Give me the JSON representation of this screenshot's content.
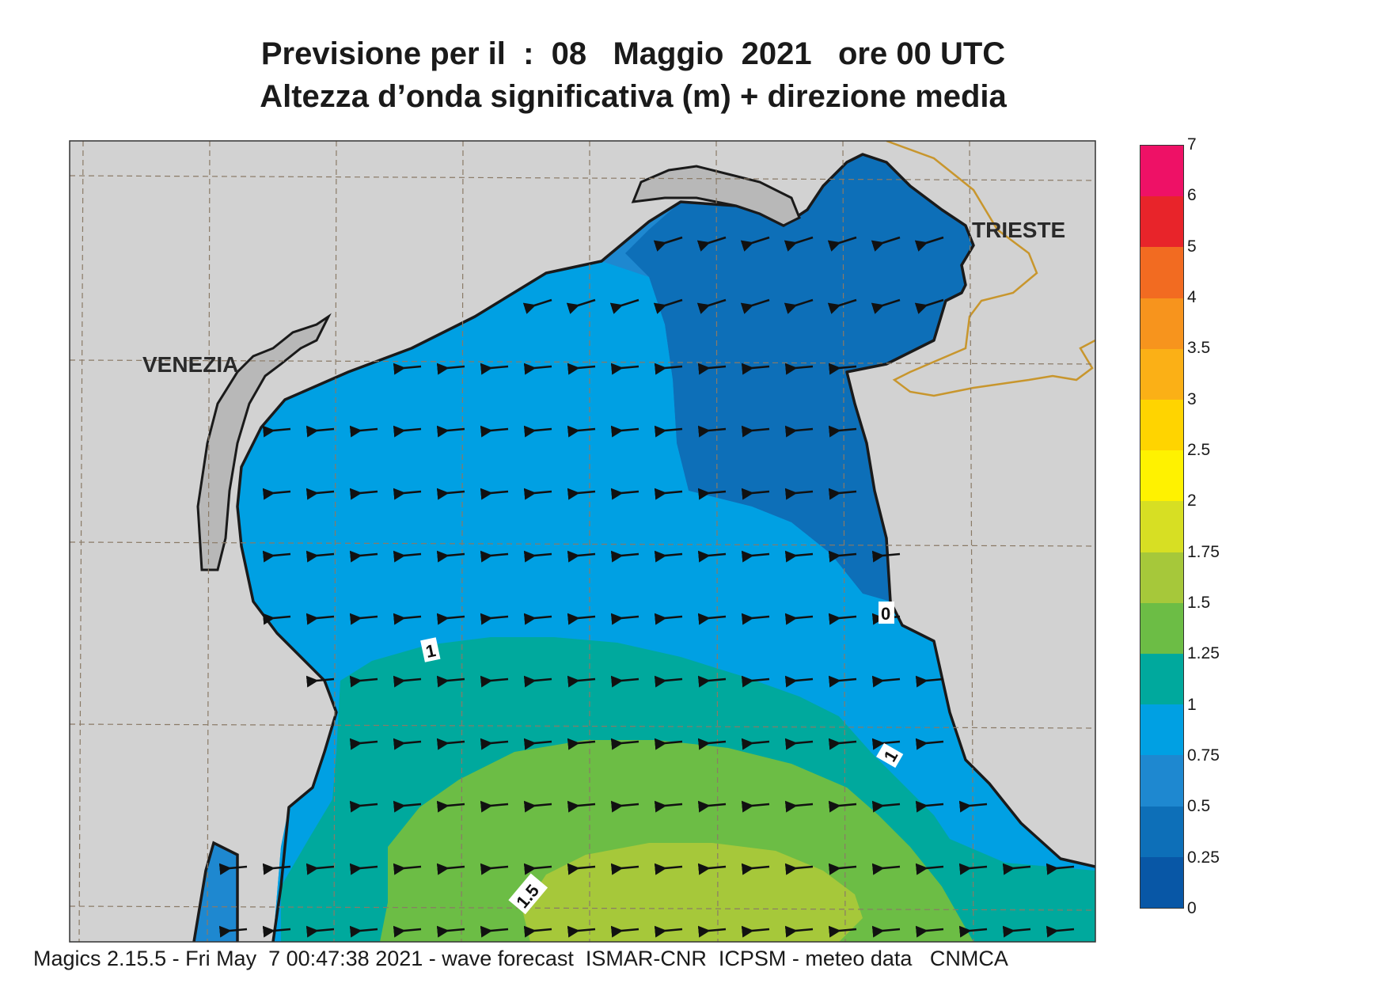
{
  "title": {
    "line1": "Previsione per il  :  08   Maggio  2021   ore 00 UTC",
    "line2": "Altezza d’onda significativa (m) + direzione media"
  },
  "cities": [
    {
      "name": "VENEZIA"
    },
    {
      "name": "TRIESTE"
    }
  ],
  "contour_labels": [
    "1",
    "1",
    "1.5",
    "0"
  ],
  "colorbar": {
    "labels": [
      "7",
      "6",
      "5",
      "4",
      "3.5",
      "3",
      "2.5",
      "2",
      "1.75",
      "1.5",
      "1.25",
      "1",
      "0.75",
      "0.5",
      "0.25",
      "0"
    ],
    "colors_top_to_bottom": [
      "#ee1166",
      "#e8242a",
      "#f26b21",
      "#f7941d",
      "#fbb016",
      "#ffd400",
      "#fff200",
      "#d7df23",
      "#a6c83a",
      "#6cbd45",
      "#00a99d",
      "#00a0e3",
      "#1e88d0",
      "#0d6fb8",
      "#0857a6"
    ]
  },
  "map": {
    "land_color": "#d2d2d2",
    "coast_color": "#1a1a1a",
    "border_color": "#c8962d",
    "wave_direction": "westward arrows throughout the basin"
  },
  "footer": "Magics 2.15.5 - Fri May  7 00:47:38 2021 - wave forecast  ISMAR-CNR  ICPSM - meteo data   CNMCA"
}
